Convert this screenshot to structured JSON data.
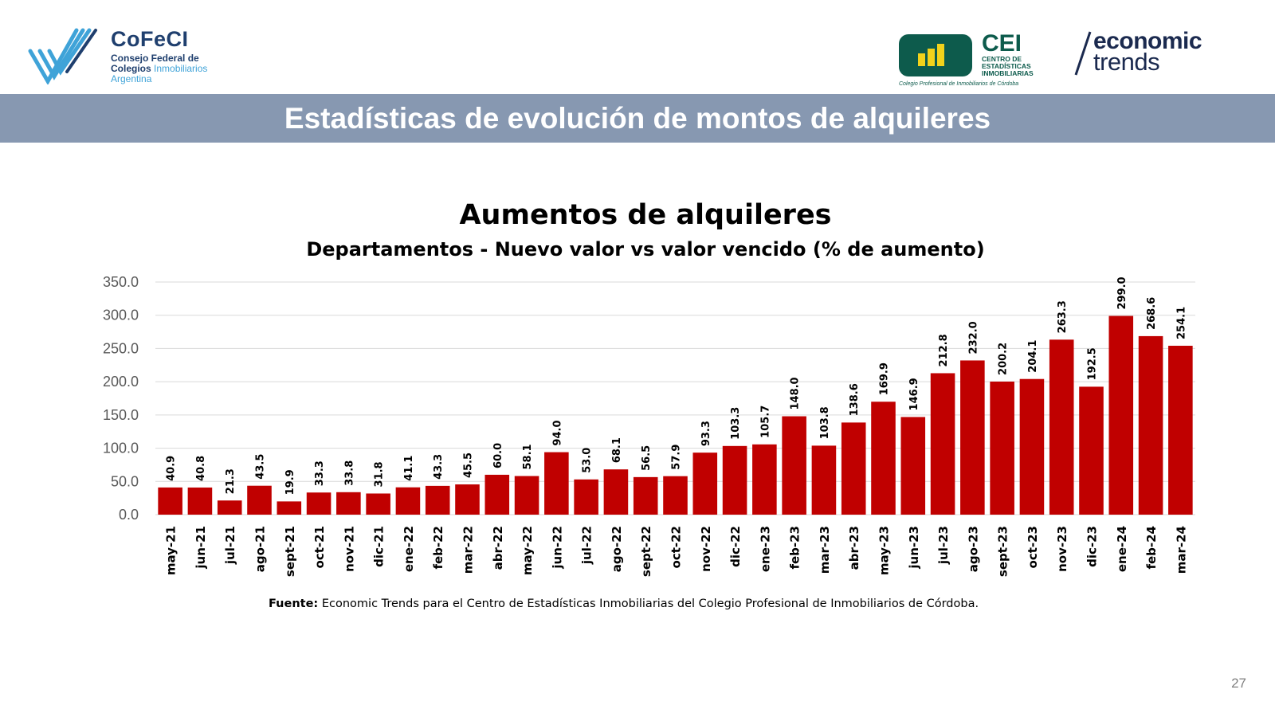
{
  "logos": {
    "cofeci": {
      "name": "CoFeCI",
      "line1": "Consejo Federal de",
      "line2a": "Colegios",
      "line2b": "Inmobiliarios",
      "line3": "Argentina"
    },
    "cei": {
      "name": "CEI",
      "sub1": "CENTRO DE",
      "sub2": "ESTADÍSTICAS",
      "sub3": "INMOBILIARIAS",
      "footer": "Colegio Profesional de Inmobiliarios de Córdoba"
    },
    "economic_trends": {
      "line1": "economic",
      "line2": "trends"
    }
  },
  "banner": {
    "title": "Estadísticas de evolución de montos de alquileres"
  },
  "chart_data": {
    "type": "bar",
    "title": "Aumentos de alquileres",
    "subtitle": "Departamentos - Nuevo valor vs valor vencido (% de aumento)",
    "xlabel": "",
    "ylabel": "",
    "ylim": [
      0,
      350
    ],
    "yticks": [
      "0.0",
      "50.0",
      "100.0",
      "150.0",
      "200.0",
      "250.0",
      "300.0",
      "350.0"
    ],
    "grid": true,
    "bar_color": "#c00000",
    "categories": [
      "may-21",
      "jun-21",
      "jul-21",
      "ago-21",
      "sept-21",
      "oct-21",
      "nov-21",
      "dic-21",
      "ene-22",
      "feb-22",
      "mar-22",
      "abr-22",
      "may-22",
      "jun-22",
      "jul-22",
      "ago-22",
      "sept-22",
      "oct-22",
      "nov-22",
      "dic-22",
      "ene-23",
      "feb-23",
      "mar-23",
      "abr-23",
      "may-23",
      "jun-23",
      "jul-23",
      "ago-23",
      "sept-23",
      "oct-23",
      "nov-23",
      "dic-23",
      "ene-24",
      "feb-24",
      "mar-24"
    ],
    "values": [
      40.9,
      40.8,
      21.3,
      43.5,
      19.9,
      33.3,
      33.8,
      31.8,
      41.1,
      43.3,
      45.5,
      60.0,
      58.1,
      94.0,
      53.0,
      68.1,
      56.5,
      57.9,
      93.3,
      103.3,
      105.7,
      148.0,
      103.8,
      138.6,
      169.9,
      146.9,
      212.8,
      232.0,
      200.2,
      204.1,
      263.3,
      192.5,
      299.0,
      268.6,
      254.1
    ]
  },
  "source": {
    "label": "Fuente:",
    "text": " Economic Trends para el Centro de Estadísticas Inmobiliarias del Colegio Profesional de Inmobiliarios de Córdoba."
  },
  "page_number": "27",
  "colors": {
    "banner": "#8798b1",
    "bars": "#c00000",
    "cei_green": "#0d5b4c",
    "cofeci_blue": "#1f3f6e"
  }
}
